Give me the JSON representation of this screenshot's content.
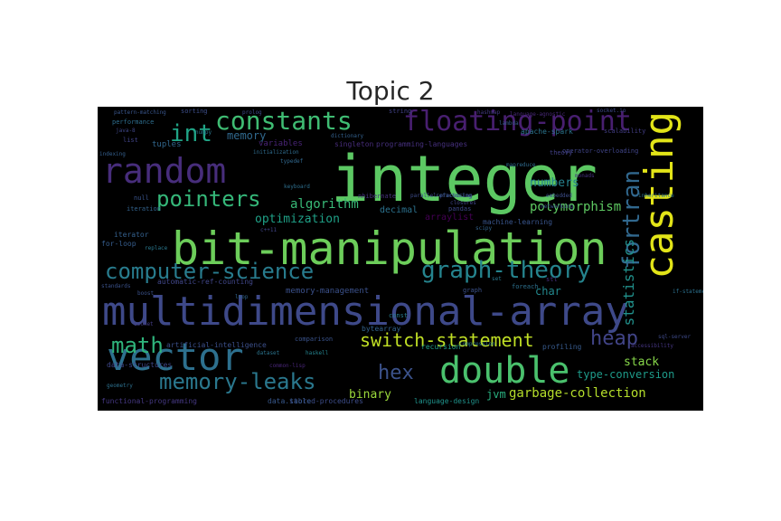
{
  "chart_data": {
    "type": "wordcloud",
    "title": "Topic 2",
    "background": "#000000",
    "words": [
      {
        "text": "integer",
        "color": "#5cc863"
      },
      {
        "text": "bit-manipulation",
        "color": "#6ccd5a"
      },
      {
        "text": "multidimensional-array",
        "color": "#3e4989"
      },
      {
        "text": "casting",
        "color": "#e2e418"
      },
      {
        "text": "random",
        "color": "#472d7b"
      },
      {
        "text": "vector",
        "color": "#2d708e"
      },
      {
        "text": "double",
        "color": "#4ac16d"
      },
      {
        "text": "floating-point",
        "color": "#481f70"
      },
      {
        "text": "constants",
        "color": "#3fbc73"
      },
      {
        "text": "graph-theory",
        "color": "#25848e"
      },
      {
        "text": "computer-science",
        "color": "#287c8e"
      },
      {
        "text": "fortran",
        "color": "#31688e"
      },
      {
        "text": "pointers",
        "color": "#35b779"
      },
      {
        "text": "memory-leaks",
        "color": "#2a788e"
      },
      {
        "text": "switch-statement",
        "color": "#c0df25"
      },
      {
        "text": "math",
        "color": "#2fb47c"
      },
      {
        "text": "heap",
        "color": "#414487"
      },
      {
        "text": "hex",
        "color": "#3b528b"
      },
      {
        "text": "int",
        "color": "#20a486"
      },
      {
        "text": "statistics",
        "color": "#21918c"
      },
      {
        "text": "garbage-collection",
        "color": "#b5de2b"
      },
      {
        "text": "polymorphism",
        "color": "#5ec962"
      },
      {
        "text": "algorithm",
        "color": "#38b977"
      },
      {
        "text": "optimization",
        "color": "#1fa187"
      },
      {
        "text": "binary",
        "color": "#9bd93c"
      },
      {
        "text": "stack",
        "color": "#86d549"
      },
      {
        "text": "type-conversion",
        "color": "#1e9b8a"
      },
      {
        "text": "numbers",
        "color": "#26828e"
      },
      {
        "text": "memory",
        "color": "#30698e"
      },
      {
        "text": "char",
        "color": "#23898e"
      },
      {
        "text": "jvm",
        "color": "#29af7f"
      },
      {
        "text": "decimal",
        "color": "#2c728e"
      },
      {
        "text": "arraylist",
        "color": "#440154"
      },
      {
        "text": "variables",
        "color": "#482475"
      },
      {
        "text": "tuples",
        "color": "#31678e"
      },
      {
        "text": "memory-management",
        "color": "#3b518b"
      },
      {
        "text": "language-design",
        "color": "#20938c"
      },
      {
        "text": "bytearray",
        "color": "#33628d"
      },
      {
        "text": "recursion",
        "color": "#1f9e89"
      },
      {
        "text": "profiling",
        "color": "#375a8c"
      },
      {
        "text": "artificial-intelligence",
        "color": "#3c508b"
      },
      {
        "text": "automatic-ref-counting",
        "color": "#404688"
      },
      {
        "text": "programming-languages",
        "color": "#46307e"
      },
      {
        "text": "singleton",
        "color": "#472c7a"
      },
      {
        "text": "machine-learning",
        "color": "#39558c"
      },
      {
        "text": "apache-spark",
        "color": "#2b758e"
      },
      {
        "text": "iterator",
        "color": "#34608d"
      },
      {
        "text": "for-loop",
        "color": "#365d8d"
      },
      {
        "text": "stored-procedures",
        "color": "#3d4d8a"
      },
      {
        "text": "functional-programming",
        "color": "#453882"
      },
      {
        "text": "data-structures",
        "color": "#3f4889"
      },
      {
        "text": "data.table",
        "color": "#38588c"
      },
      {
        "text": "comparison",
        "color": "#3a538b"
      },
      {
        "text": "scalability",
        "color": "#433e85"
      },
      {
        "text": "nhibernate",
        "color": "#46327e"
      },
      {
        "text": "sorting",
        "color": "#3d4e8a"
      },
      {
        "text": "performance",
        "color": "#2e6e8e"
      },
      {
        "text": "list",
        "color": "#404387"
      },
      {
        "text": "string",
        "color": "#414287"
      },
      {
        "text": "theory",
        "color": "#423f85"
      },
      {
        "text": "pandas",
        "color": "#3e4a89"
      },
      {
        "text": "const",
        "color": "#287d8e"
      },
      {
        "text": "foreach",
        "color": "#2d718e"
      },
      {
        "text": "graph",
        "color": "#3b528b"
      },
      {
        "text": "null",
        "color": "#3a548c"
      },
      {
        "text": "iteration",
        "color": "#33638d"
      },
      {
        "text": "numpy",
        "color": "#2a778e"
      },
      {
        "text": "keyboard",
        "color": "#2e6f8e"
      },
      {
        "text": "parallel-processing",
        "color": "#3e4c8a"
      },
      {
        "text": "dictionary",
        "color": "#34618d"
      },
      {
        "text": "operator-overloading",
        "color": "#404588"
      },
      {
        "text": "compression",
        "color": "#2a768e"
      },
      {
        "text": "accessibility",
        "color": "#453581"
      },
      {
        "text": "dataset",
        "color": "#2b748e"
      },
      {
        "text": "haskell",
        "color": "#25838e"
      },
      {
        "text": "common-lisp",
        "color": "#482677"
      },
      {
        "text": "geometry",
        "color": "#2d708e"
      },
      {
        "text": "standards",
        "color": "#3b528b"
      },
      {
        "text": "replace",
        "color": "#2a788e"
      },
      {
        "text": "prolog",
        "color": "#3e4989"
      },
      {
        "text": "monads",
        "color": "#46337f"
      },
      {
        "text": "closures",
        "color": "#404688"
      },
      {
        "text": "inheritance",
        "color": "#2c738e"
      },
      {
        "text": "boost",
        "color": "#3b528b"
      },
      {
        "text": "typedef",
        "color": "#31688e"
      },
      {
        "text": "language-agnostic",
        "color": "#482878"
      },
      {
        "text": "pattern-matching",
        "color": "#39568c"
      },
      {
        "text": "socket.io",
        "color": "#3e4989"
      },
      {
        "text": "networking",
        "color": "#3b528b"
      },
      {
        "text": "initialization",
        "color": "#2f6c8e"
      },
      {
        "text": "indexing",
        "color": "#355f8d"
      },
      {
        "text": "java-8",
        "color": "#3f4788"
      },
      {
        "text": "hashmap",
        "color": "#443a83"
      },
      {
        "text": "mapreduce",
        "color": "#2f6b8e"
      },
      {
        "text": "scipy",
        "color": "#33638d"
      },
      {
        "text": "embedded",
        "color": "#3d4e8a"
      },
      {
        "text": "refactoring",
        "color": "#38598c"
      },
      {
        "text": "if-statement",
        "color": "#2c718e"
      },
      {
        "text": "sql-server",
        "color": "#3e4a89"
      },
      {
        "text": "lambda",
        "color": "#375b8d"
      },
      {
        "text": "c++11",
        "color": "#404588"
      },
      {
        "text": "socket",
        "color": "#433d84"
      },
      {
        "text": "stl",
        "color": "#472f7d"
      },
      {
        "text": "set",
        "color": "#2a788e"
      },
      {
        "text": "loop",
        "color": "#31668e"
      }
    ]
  }
}
